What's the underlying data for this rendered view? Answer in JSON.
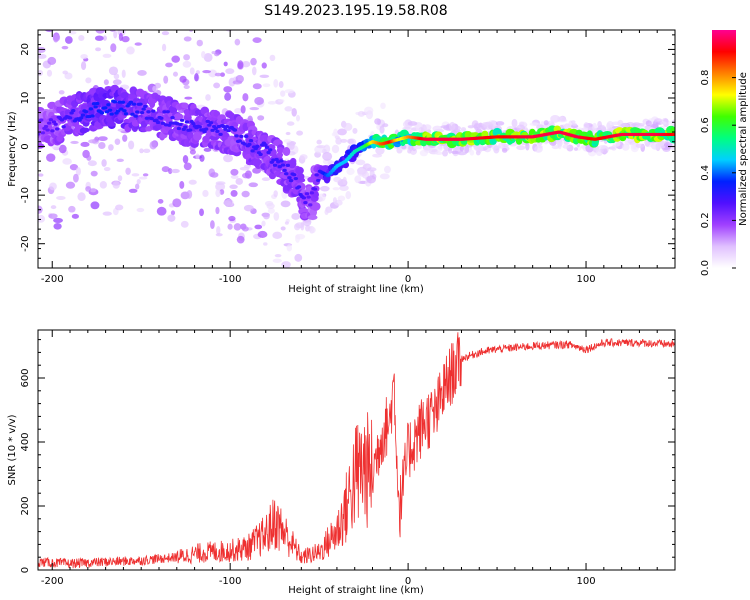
{
  "title": "S149.2023.195.19.58.R08",
  "colorbar_label": "Normalized spectral amplitude",
  "colorbar_ticks": [
    "0.0",
    "0.2",
    "0.4",
    "0.6",
    "0.8"
  ],
  "colorbar_colors": [
    "#ffffff",
    "#e0c0ff",
    "#a040ff",
    "#5010ff",
    "#0020ff",
    "#00d0ff",
    "#00ff80",
    "#40ff00",
    "#ffff00",
    "#ff8000",
    "#ff0000",
    "#ff0090"
  ],
  "chart_data": [
    {
      "type": "heatmap",
      "xlabel": "Height of straight line (km)",
      "ylabel": "Frequency (Hz)",
      "xlim": [
        -208,
        150
      ],
      "ylim": [
        -25,
        24
      ],
      "xticks": [
        -200,
        -100,
        0,
        100
      ],
      "yticks": [
        20,
        10,
        0,
        -10,
        -20
      ],
      "xtick_labels": [
        "-200",
        "-100",
        "0",
        "100"
      ],
      "ytick_labels": [
        "20",
        "10",
        "0",
        "-10",
        "-20"
      ],
      "clim": [
        0,
        1
      ],
      "ridge": {
        "x": [
          -205,
          -190,
          -175,
          -160,
          -145,
          -130,
          -115,
          -100,
          -90,
          -80,
          -70,
          -60,
          -55,
          -50,
          -45,
          -40,
          -35,
          -30,
          -25,
          -20,
          -15,
          -10,
          -5,
          0,
          10,
          30,
          50,
          70,
          85,
          95,
          105,
          120,
          140,
          150
        ],
        "y": [
          4,
          6,
          8,
          8,
          7,
          5,
          4,
          3,
          1,
          -1,
          -4,
          -9,
          -12,
          -5,
          -6,
          -4,
          -3,
          -1,
          0,
          1,
          0.5,
          1,
          1.5,
          2,
          1.5,
          1.5,
          2,
          2,
          3,
          2,
          1.5,
          2.5,
          2.5,
          2.5
        ],
        "peak_amplitude": [
          0.25,
          0.3,
          0.35,
          0.35,
          0.3,
          0.3,
          0.3,
          0.3,
          0.3,
          0.3,
          0.3,
          0.3,
          0.25,
          0.3,
          0.4,
          0.45,
          0.45,
          0.5,
          0.55,
          0.75,
          0.85,
          0.9,
          0.7,
          0.8,
          0.95,
          0.95,
          0.9,
          0.95,
          0.95,
          0.95,
          0.9,
          0.95,
          0.95,
          0.9
        ]
      }
    },
    {
      "type": "line",
      "xlabel": "Height of straight line (km)",
      "ylabel": "SNR (10 * v/v)",
      "xlim": [
        -208,
        150
      ],
      "ylim": [
        0,
        750
      ],
      "xticks": [
        -200,
        -100,
        0,
        100
      ],
      "yticks": [
        0,
        200,
        400,
        600
      ],
      "xtick_labels": [
        "-200",
        "-100",
        "0",
        "100"
      ],
      "ytick_labels": [
        "0",
        "200",
        "400",
        "600"
      ],
      "series": [
        {
          "color": "#ee3030",
          "x": [
            -208,
            -190,
            -170,
            -150,
            -130,
            -115,
            -100,
            -90,
            -80,
            -75,
            -70,
            -60,
            -50,
            -40,
            -35,
            -30,
            -25,
            -20,
            -15,
            -10,
            -8,
            -5,
            0,
            5,
            10,
            15,
            20,
            25,
            30,
            40,
            50,
            70,
            90,
            100,
            110,
            130,
            150
          ],
          "y": [
            25,
            20,
            25,
            30,
            40,
            55,
            60,
            70,
            110,
            150,
            120,
            40,
            55,
            120,
            190,
            290,
            320,
            300,
            420,
            470,
            600,
            180,
            370,
            420,
            470,
            480,
            560,
            620,
            660,
            680,
            690,
            700,
            705,
            690,
            710,
            710,
            705
          ]
        }
      ]
    }
  ]
}
